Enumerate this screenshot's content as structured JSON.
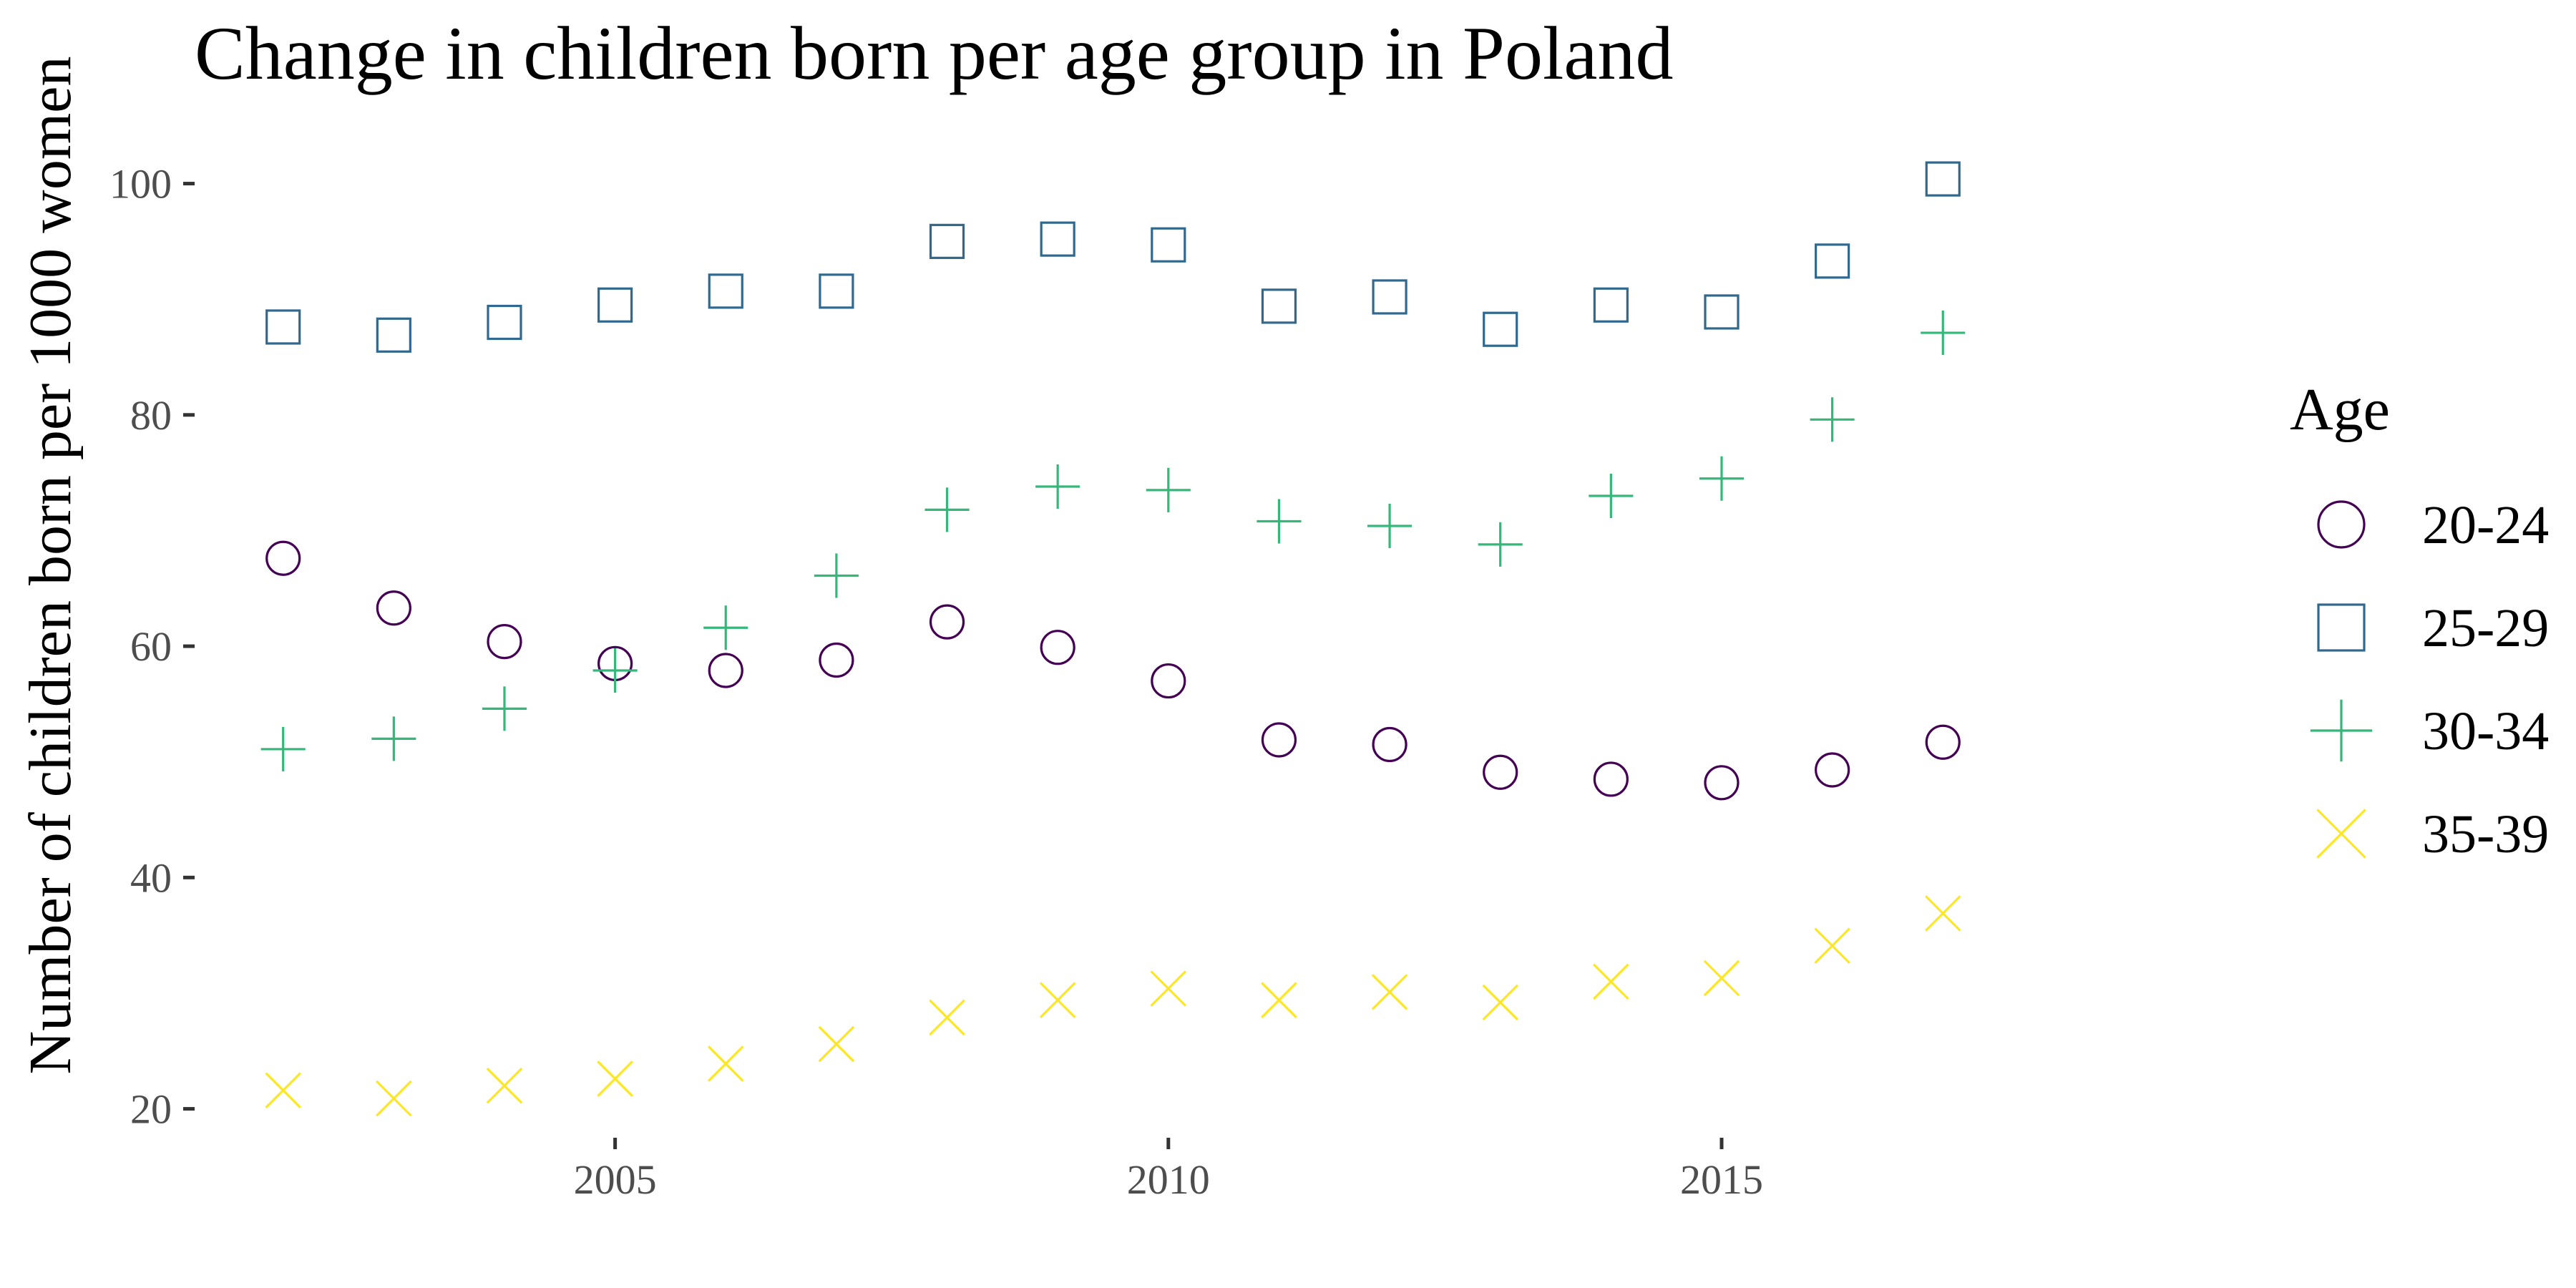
{
  "chart_data": {
    "type": "scatter",
    "title": "Change in children born per age group in Poland",
    "xlabel": "",
    "ylabel": "Number of children born per 1000 women",
    "x": [
      2002,
      2003,
      2004,
      2005,
      2006,
      2007,
      2008,
      2009,
      2010,
      2011,
      2012,
      2013,
      2014,
      2015,
      2016,
      2017
    ],
    "xlim": [
      2001.2,
      2019.1
    ],
    "ylim": [
      17.5,
      103.5
    ],
    "x_ticks": [
      2005,
      2010,
      2015
    ],
    "x_tick_labels": [
      "2005",
      "2010",
      "2015"
    ],
    "y_ticks": [
      20,
      40,
      60,
      80,
      100
    ],
    "y_tick_labels": [
      "20",
      "40",
      "60",
      "80",
      "100"
    ],
    "grid": false,
    "legend": {
      "title": "Age",
      "placement": "right"
    },
    "series": [
      {
        "name": "20-24",
        "shape": "circle-icon",
        "color": "#440154",
        "values": [
          67.6,
          63.3,
          60.4,
          58.5,
          57.9,
          58.8,
          62.1,
          59.9,
          57.0,
          51.9,
          51.5,
          49.1,
          48.5,
          48.2,
          49.3,
          51.7
        ]
      },
      {
        "name": "25-29",
        "shape": "square-icon",
        "color": "#31688E",
        "values": [
          87.6,
          86.9,
          88.0,
          89.5,
          90.7,
          90.7,
          95.0,
          95.2,
          94.7,
          89.4,
          90.2,
          87.4,
          89.5,
          88.9,
          93.3,
          100.4
        ]
      },
      {
        "name": "30-34",
        "shape": "plus-icon",
        "color": "#35B779",
        "values": [
          51.1,
          52.0,
          54.6,
          57.9,
          61.6,
          66.1,
          71.8,
          73.8,
          73.5,
          70.8,
          70.4,
          68.8,
          73.0,
          74.5,
          79.6,
          87.1
        ]
      },
      {
        "name": "35-39",
        "shape": "cross-icon",
        "color": "#FDE725",
        "values": [
          21.6,
          20.9,
          22.0,
          22.6,
          23.9,
          25.6,
          27.9,
          29.4,
          30.4,
          29.4,
          30.1,
          29.2,
          31.0,
          31.3,
          34.1,
          36.9
        ]
      }
    ]
  }
}
